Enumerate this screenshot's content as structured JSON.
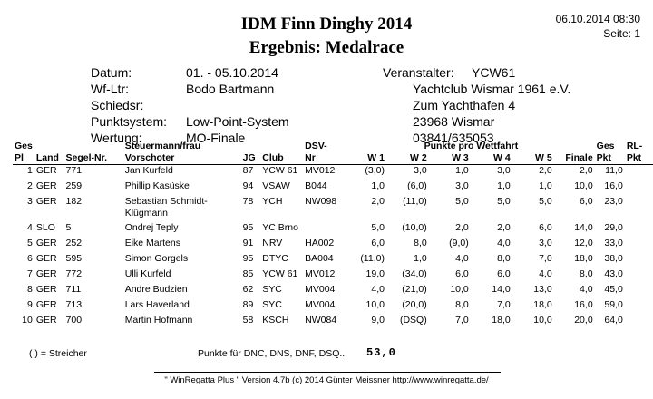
{
  "header": {
    "title": "IDM Finn Dinghy 2014",
    "subtitle": "Ergebnis:  Medalrace",
    "date_time": "06.10.2014  08:30",
    "page": "Seite: 1"
  },
  "info": {
    "labels": [
      "Datum:",
      "Wf-Ltr:",
      "Schiedsr:",
      "Punktsystem:",
      "Wertung:"
    ],
    "values": [
      "01. - 05.10.2014",
      "Bodo Bartmann",
      "",
      "Low-Point-System",
      "MO-Finale"
    ],
    "organizer_label": "Veranstalter:",
    "organizer_lines": [
      "YCW61",
      "Yachtclub Wismar 1961 e.V.",
      "Zum Yachthafen 4",
      "23968 Wismar",
      "03841/635053"
    ]
  },
  "table": {
    "header_top": [
      "Ges",
      "",
      "",
      "Steuermann/frau",
      "",
      "",
      "DSV-",
      "Punkte pro Wettfahrt",
      "Ges",
      "RL-"
    ],
    "headers": [
      "Pl",
      "Land",
      "Segel-Nr.",
      "Vorschoter",
      "JG",
      "Club",
      "Nr",
      "W 1",
      "W 2",
      "W 3",
      "W 4",
      "W 5",
      "Finale",
      "Pkt",
      "Pkt"
    ],
    "rows": [
      [
        "1",
        "GER",
        "771",
        "Jan Kurfeld",
        "87",
        "YCW 61",
        "MV012",
        "(3,0)",
        "3,0",
        "1,0",
        "3,0",
        "2,0",
        "2,0",
        "11,0",
        ""
      ],
      [
        "2",
        "GER",
        "259",
        "Phillip Kasüske",
        "94",
        "VSAW",
        "B044",
        "1,0",
        "(6,0)",
        "3,0",
        "1,0",
        "1,0",
        "10,0",
        "16,0",
        ""
      ],
      [
        "3",
        "GER",
        "182",
        "Sebastian Schmidt-Klügmann",
        "78",
        "YCH",
        "NW098",
        "2,0",
        "(11,0)",
        "5,0",
        "5,0",
        "5,0",
        "6,0",
        "23,0",
        ""
      ],
      [
        "4",
        "SLO",
        "5",
        "Ondrej Teply",
        "95",
        "YC Brno",
        "",
        "5,0",
        "(10,0)",
        "2,0",
        "2,0",
        "6,0",
        "14,0",
        "29,0",
        ""
      ],
      [
        "5",
        "GER",
        "252",
        "Eike Martens",
        "91",
        "NRV",
        "HA002",
        "6,0",
        "8,0",
        "(9,0)",
        "4,0",
        "3,0",
        "12,0",
        "33,0",
        ""
      ],
      [
        "6",
        "GER",
        "595",
        "Simon Gorgels",
        "95",
        "DTYC",
        "BA004",
        "(11,0)",
        "1,0",
        "4,0",
        "8,0",
        "7,0",
        "18,0",
        "38,0",
        ""
      ],
      [
        "7",
        "GER",
        "772",
        "Ulli Kurfeld",
        "85",
        "YCW 61",
        "MV012",
        "19,0",
        "(34,0)",
        "6,0",
        "6,0",
        "4,0",
        "8,0",
        "43,0",
        ""
      ],
      [
        "8",
        "GER",
        "711",
        "Andre Budzien",
        "62",
        "SYC",
        "MV004",
        "4,0",
        "(21,0)",
        "10,0",
        "14,0",
        "13,0",
        "4,0",
        "45,0",
        ""
      ],
      [
        "9",
        "GER",
        "713",
        "Lars Haverland",
        "89",
        "SYC",
        "MV004",
        "10,0",
        "(20,0)",
        "8,0",
        "7,0",
        "18,0",
        "16,0",
        "59,0",
        ""
      ],
      [
        "10",
        "GER",
        "700",
        "Martin Hofmann",
        "58",
        "KSCH",
        "NW084",
        "9,0",
        "(DSQ)",
        "7,0",
        "18,0",
        "10,0",
        "20,0",
        "64,0",
        ""
      ]
    ]
  },
  "footer": {
    "legend": "( ) = Streicher",
    "points_label": "Punkte für DNC, DNS, DNF, DSQ..",
    "points_value": "53,0",
    "credit": "\" WinRegatta Plus \"  Version 4.7b   (c)  2014 Günter Meissner   http://www.winregatta.de/"
  }
}
